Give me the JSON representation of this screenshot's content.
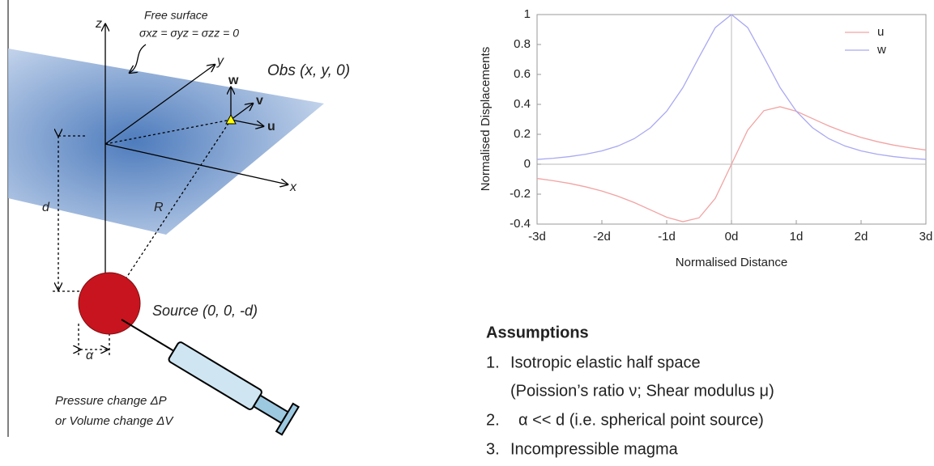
{
  "diagram": {
    "free_surface": "Free surface",
    "stress": "σxz = σyz = σzz = 0",
    "z": "z",
    "y": "y",
    "x": "x",
    "w": "w",
    "v": "v",
    "u": "u",
    "obs": "Obs (x, y, 0)",
    "d": "d",
    "R": "R",
    "source": "Source (0, 0, -d)",
    "alpha": "α",
    "pressure": "Pressure change ΔP",
    "volume": "or Volume change ΔV"
  },
  "assumptions": {
    "title": "Assumptions",
    "items": [
      {
        "number": "1.",
        "text": "Isotropic elastic half space",
        "detail": "(Poission’s ratio ν; Shear modulus μ)"
      },
      {
        "number": "2.",
        "text": "α << d  (i.e. spherical point source)"
      },
      {
        "number": "3.",
        "text": "Incompressible magma"
      }
    ]
  },
  "chart_data": {
    "type": "line",
    "xlabel": "Normalised Distance",
    "ylabel": "Normalised Displacements",
    "x": [
      -3,
      -2.75,
      -2.5,
      -2.25,
      -2,
      -1.75,
      -1.5,
      -1.25,
      -1,
      -0.75,
      -0.5,
      -0.25,
      0,
      0.25,
      0.5,
      0.75,
      1,
      1.25,
      1.5,
      1.75,
      2,
      2.25,
      2.5,
      2.75,
      3
    ],
    "series": [
      {
        "name": "u",
        "color": "#f2a3a3",
        "values": [
          -0.095,
          -0.11,
          -0.128,
          -0.151,
          -0.179,
          -0.214,
          -0.256,
          -0.305,
          -0.354,
          -0.384,
          -0.358,
          -0.228,
          0,
          0.228,
          0.358,
          0.384,
          0.354,
          0.305,
          0.256,
          0.214,
          0.179,
          0.151,
          0.128,
          0.11,
          0.095
        ]
      },
      {
        "name": "w",
        "color": "#a9a9f2",
        "values": [
          0.032,
          0.04,
          0.051,
          0.067,
          0.089,
          0.122,
          0.171,
          0.244,
          0.354,
          0.512,
          0.716,
          0.913,
          1,
          0.913,
          0.716,
          0.512,
          0.354,
          0.244,
          0.171,
          0.122,
          0.089,
          0.067,
          0.051,
          0.04,
          0.032
        ]
      }
    ],
    "xlim": [
      -3,
      3
    ],
    "xticks": [
      {
        "value": -3,
        "label": "-3d"
      },
      {
        "value": -2,
        "label": "-2d"
      },
      {
        "value": -1,
        "label": "-1d"
      },
      {
        "value": 0,
        "label": "0d"
      },
      {
        "value": 1,
        "label": "1d"
      },
      {
        "value": 2,
        "label": "2d"
      },
      {
        "value": 3,
        "label": "3d"
      }
    ],
    "ylim": [
      -0.4,
      1
    ],
    "yticks": [
      -0.4,
      -0.2,
      0,
      0.2,
      0.4,
      0.6,
      0.8,
      1
    ],
    "zero_lines": true,
    "legend": "upper right"
  }
}
